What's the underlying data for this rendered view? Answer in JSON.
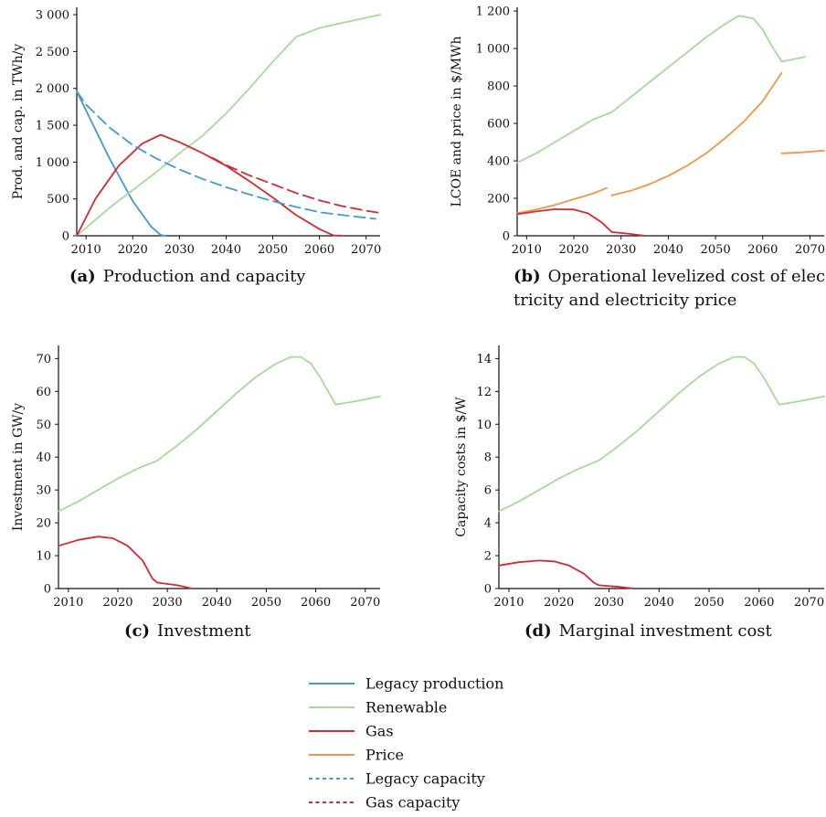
{
  "colors": {
    "legacy_production": "#3f9ad6",
    "renewable": "#a6d99a",
    "gas": "#d62a32",
    "price": "#f0964a",
    "legacy_capacity": "#3f9ad6",
    "gas_capacity": "#d62a32"
  },
  "legend": [
    {
      "label": "Legacy production",
      "style": "solid",
      "color_key": "legacy_production"
    },
    {
      "label": "Renewable",
      "style": "solid",
      "color_key": "renewable"
    },
    {
      "label": "Gas",
      "style": "solid",
      "color_key": "gas"
    },
    {
      "label": "Price",
      "style": "solid",
      "color_key": "price"
    },
    {
      "label": "Legacy capacity",
      "style": "dotted",
      "color_key": "legacy_capacity"
    },
    {
      "label": "Gas capacity",
      "style": "dotted",
      "color_key": "gas_capacity"
    }
  ],
  "chart_data": [
    {
      "type": "line",
      "panel": "a",
      "caption_label": "(a)",
      "caption_lines": [
        "Production and capacity"
      ],
      "ylabel": "Prod. and cap. in TWh/y",
      "xlim": [
        2008,
        2073
      ],
      "ylim": [
        0,
        3100
      ],
      "xticks": [
        2010,
        2020,
        2030,
        2040,
        2050,
        2060,
        2070
      ],
      "yticks": [
        0,
        500,
        1000,
        1500,
        2000,
        2500,
        3000
      ],
      "ytick_labels": [
        "0",
        "500",
        "1 000",
        "1 500",
        "2 000",
        "2 500",
        "3 000"
      ],
      "series": [
        {
          "color_key": "legacy_production",
          "dash": "solid",
          "points": [
            [
              2008,
              1960
            ],
            [
              2010,
              1700
            ],
            [
              2015,
              1050
            ],
            [
              2020,
              470
            ],
            [
              2024,
              120
            ],
            [
              2026,
              10
            ],
            [
              2027,
              0
            ]
          ]
        },
        {
          "color_key": "renewable",
          "dash": "solid",
          "points": [
            [
              2008,
              0
            ],
            [
              2015,
              380
            ],
            [
              2020,
              620
            ],
            [
              2025,
              860
            ],
            [
              2030,
              1120
            ],
            [
              2035,
              1360
            ],
            [
              2040,
              1660
            ],
            [
              2045,
              2000
            ],
            [
              2050,
              2360
            ],
            [
              2055,
              2700
            ],
            [
              2060,
              2820
            ],
            [
              2065,
              2890
            ],
            [
              2073,
              3000
            ]
          ]
        },
        {
          "color_key": "gas",
          "dash": "solid",
          "points": [
            [
              2008,
              0
            ],
            [
              2012,
              500
            ],
            [
              2017,
              950
            ],
            [
              2022,
              1250
            ],
            [
              2026,
              1370
            ],
            [
              2030,
              1270
            ],
            [
              2035,
              1120
            ],
            [
              2040,
              950
            ],
            [
              2045,
              740
            ],
            [
              2050,
              520
            ],
            [
              2055,
              280
            ],
            [
              2060,
              90
            ],
            [
              2063,
              5
            ],
            [
              2065,
              0
            ]
          ]
        },
        {
          "color_key": "legacy_capacity",
          "dash": "dashed",
          "points": [
            [
              2008,
              1960
            ],
            [
              2010,
              1780
            ],
            [
              2015,
              1470
            ],
            [
              2020,
              1230
            ],
            [
              2025,
              1050
            ],
            [
              2030,
              900
            ],
            [
              2035,
              770
            ],
            [
              2040,
              660
            ],
            [
              2045,
              560
            ],
            [
              2050,
              470
            ],
            [
              2055,
              390
            ],
            [
              2060,
              320
            ],
            [
              2065,
              280
            ],
            [
              2072,
              230
            ]
          ]
        },
        {
          "color_key": "gas_capacity",
          "dash": "dashed",
          "points": [
            [
              2037,
              1060
            ],
            [
              2040,
              960
            ],
            [
              2045,
              820
            ],
            [
              2050,
              700
            ],
            [
              2055,
              580
            ],
            [
              2060,
              480
            ],
            [
              2065,
              400
            ],
            [
              2070,
              340
            ],
            [
              2073,
              310
            ]
          ]
        }
      ]
    },
    {
      "type": "line",
      "panel": "b",
      "caption_label": "(b)",
      "caption_lines": [
        "Operational levelized cost of elec-",
        "tricity and electricity price"
      ],
      "ylabel": "LCOE and price in $/MWh",
      "xlim": [
        2008,
        2073
      ],
      "ylim": [
        0,
        1220
      ],
      "xticks": [
        2010,
        2020,
        2030,
        2040,
        2050,
        2060,
        2070
      ],
      "yticks": [
        0,
        200,
        400,
        600,
        800,
        1000,
        1200
      ],
      "ytick_labels": [
        "0",
        "200",
        "400",
        "600",
        "800",
        "1 000",
        "1 200"
      ],
      "series": [
        {
          "color_key": "renewable",
          "dash": "solid",
          "points": [
            [
              2008,
              390
            ],
            [
              2012,
              440
            ],
            [
              2016,
              500
            ],
            [
              2020,
              560
            ],
            [
              2024,
              620
            ],
            [
              2028,
              660
            ],
            [
              2032,
              740
            ],
            [
              2036,
              820
            ],
            [
              2040,
              900
            ],
            [
              2044,
              980
            ],
            [
              2048,
              1060
            ],
            [
              2052,
              1130
            ],
            [
              2055,
              1175
            ],
            [
              2058,
              1160
            ],
            [
              2060,
              1100
            ],
            [
              2062,
              1010
            ],
            [
              2064,
              930
            ],
            [
              2066,
              940
            ],
            [
              2069,
              955
            ]
          ]
        },
        {
          "color_key": "price",
          "dash": "solid",
          "points": [
            [
              2008,
              120
            ],
            [
              2012,
              140
            ],
            [
              2016,
              165
            ],
            [
              2020,
              195
            ],
            [
              2024,
              225
            ],
            [
              2027,
              255
            ]
          ]
        },
        {
          "color_key": "price",
          "dash": "solid",
          "points": [
            [
              2028,
              215
            ],
            [
              2032,
              240
            ],
            [
              2036,
              275
            ],
            [
              2040,
              320
            ],
            [
              2044,
              375
            ],
            [
              2048,
              440
            ],
            [
              2052,
              520
            ],
            [
              2056,
              610
            ],
            [
              2060,
              720
            ],
            [
              2064,
              870
            ]
          ]
        },
        {
          "color_key": "price",
          "dash": "solid",
          "points": [
            [
              2064,
              440
            ],
            [
              2068,
              445
            ],
            [
              2073,
              455
            ]
          ]
        },
        {
          "color_key": "gas",
          "dash": "solid",
          "points": [
            [
              2008,
              115
            ],
            [
              2012,
              130
            ],
            [
              2016,
              142
            ],
            [
              2020,
              140
            ],
            [
              2023,
              120
            ],
            [
              2026,
              70
            ],
            [
              2028,
              20
            ],
            [
              2032,
              10
            ],
            [
              2035,
              0
            ]
          ]
        }
      ]
    },
    {
      "type": "line",
      "panel": "c",
      "caption_label": "(c)",
      "caption_lines": [
        "Investment"
      ],
      "ylabel": "Investment in GW/y",
      "xlim": [
        2008,
        2073
      ],
      "ylim": [
        0,
        74
      ],
      "xticks": [
        2010,
        2020,
        2030,
        2040,
        2050,
        2060,
        2070
      ],
      "yticks": [
        0,
        10,
        20,
        30,
        40,
        50,
        60,
        70
      ],
      "ytick_labels": [
        "0",
        "10",
        "20",
        "30",
        "40",
        "50",
        "60",
        "70"
      ],
      "series": [
        {
          "color_key": "renewable",
          "dash": "solid",
          "points": [
            [
              2008,
              23.5
            ],
            [
              2012,
              26.5
            ],
            [
              2016,
              30
            ],
            [
              2020,
              33.5
            ],
            [
              2024,
              36.5
            ],
            [
              2028,
              39
            ],
            [
              2032,
              43.5
            ],
            [
              2036,
              48.5
            ],
            [
              2040,
              54
            ],
            [
              2044,
              59.5
            ],
            [
              2048,
              64.5
            ],
            [
              2052,
              68.5
            ],
            [
              2055,
              70.5
            ],
            [
              2057,
              70.5
            ],
            [
              2059,
              68.5
            ],
            [
              2061,
              64
            ],
            [
              2064,
              56
            ],
            [
              2068,
              57
            ],
            [
              2073,
              58.5
            ]
          ]
        },
        {
          "color_key": "gas",
          "dash": "solid",
          "points": [
            [
              2008,
              13
            ],
            [
              2012,
              14.8
            ],
            [
              2016,
              15.8
            ],
            [
              2019,
              15.3
            ],
            [
              2022,
              13
            ],
            [
              2025,
              8.5
            ],
            [
              2027,
              3
            ],
            [
              2028,
              1.8
            ],
            [
              2032,
              1
            ],
            [
              2035,
              0
            ]
          ]
        }
      ]
    },
    {
      "type": "line",
      "panel": "d",
      "caption_label": "(d)",
      "caption_lines": [
        "Marginal investment cost"
      ],
      "ylabel": "Capacity costs in $/W",
      "xlim": [
        2008,
        2073
      ],
      "ylim": [
        0,
        14.8
      ],
      "xticks": [
        2010,
        2020,
        2030,
        2040,
        2050,
        2060,
        2070
      ],
      "yticks": [
        0,
        2,
        4,
        6,
        8,
        10,
        12,
        14
      ],
      "ytick_labels": [
        "0",
        "2",
        "4",
        "6",
        "8",
        "10",
        "12",
        "14"
      ],
      "series": [
        {
          "color_key": "renewable",
          "dash": "solid",
          "points": [
            [
              2008,
              4.7
            ],
            [
              2012,
              5.3
            ],
            [
              2016,
              6
            ],
            [
              2020,
              6.7
            ],
            [
              2024,
              7.3
            ],
            [
              2028,
              7.8
            ],
            [
              2032,
              8.7
            ],
            [
              2036,
              9.7
            ],
            [
              2040,
              10.8
            ],
            [
              2044,
              11.9
            ],
            [
              2048,
              12.9
            ],
            [
              2052,
              13.7
            ],
            [
              2055,
              14.1
            ],
            [
              2057,
              14.1
            ],
            [
              2059,
              13.7
            ],
            [
              2061,
              12.8
            ],
            [
              2064,
              11.2
            ],
            [
              2068,
              11.4
            ],
            [
              2073,
              11.7
            ]
          ]
        },
        {
          "color_key": "gas",
          "dash": "solid",
          "points": [
            [
              2008,
              1.4
            ],
            [
              2012,
              1.6
            ],
            [
              2016,
              1.7
            ],
            [
              2019,
              1.65
            ],
            [
              2022,
              1.4
            ],
            [
              2025,
              0.9
            ],
            [
              2027,
              0.35
            ],
            [
              2028,
              0.2
            ],
            [
              2032,
              0.1
            ],
            [
              2035,
              0
            ]
          ]
        }
      ]
    }
  ]
}
